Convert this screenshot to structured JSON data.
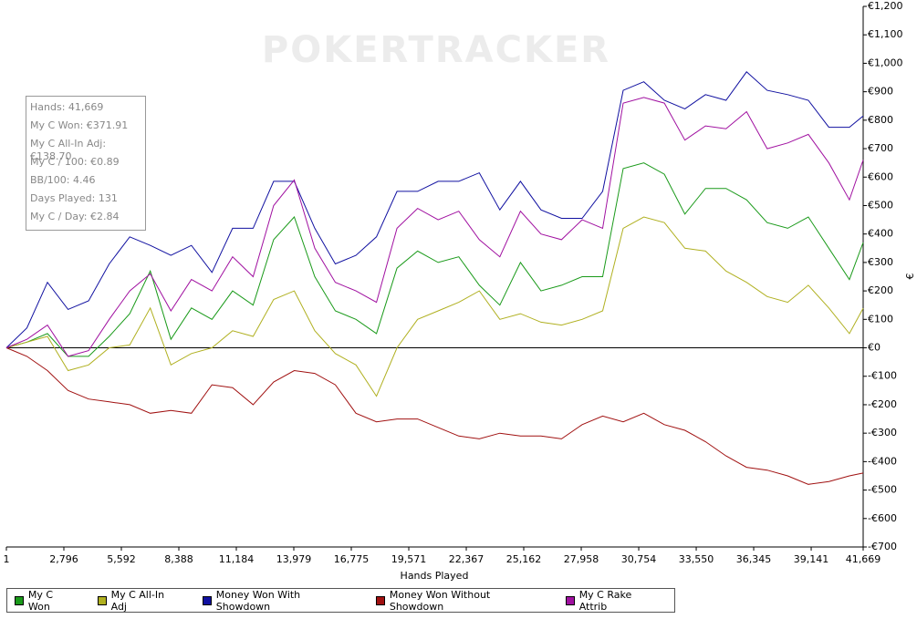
{
  "chart_data": {
    "type": "line",
    "watermark": "POKERTRACKER",
    "x_label": "Hands Played",
    "y_label": "€",
    "annotations": [
      "Hands: 41,669",
      "My C Won: €371.91",
      "My C All-In Adj: €138.70",
      "My C / 100: €0.89",
      "BB/100: 4.46",
      "Days Played: 131",
      "My C / Day: €2.84"
    ],
    "x": [
      1,
      1000,
      2000,
      3000,
      4000,
      5000,
      6000,
      7000,
      8000,
      9000,
      10000,
      11000,
      12000,
      13000,
      14000,
      15000,
      16000,
      17000,
      18000,
      19000,
      20000,
      21000,
      22000,
      23000,
      24000,
      25000,
      26000,
      27000,
      28000,
      29000,
      30000,
      31000,
      32000,
      33000,
      34000,
      35000,
      36000,
      37000,
      38000,
      39000,
      40000,
      41000,
      41669
    ],
    "series": [
      {
        "name": "My C Won",
        "color": "#1a9a1a",
        "values": [
          0,
          20,
          50,
          -30,
          -30,
          40,
          120,
          270,
          30,
          140,
          100,
          200,
          150,
          380,
          460,
          250,
          130,
          100,
          50,
          280,
          340,
          300,
          320,
          220,
          150,
          300,
          200,
          220,
          250,
          250,
          630,
          650,
          610,
          470,
          560,
          560,
          520,
          440,
          420,
          460,
          350,
          240,
          370
        ]
      },
      {
        "name": "My C All-In Adj",
        "color": "#b0b020",
        "values": [
          0,
          20,
          40,
          -80,
          -60,
          0,
          10,
          140,
          -60,
          -20,
          0,
          60,
          40,
          170,
          200,
          60,
          -20,
          -60,
          -170,
          0,
          100,
          130,
          160,
          200,
          100,
          120,
          90,
          80,
          100,
          130,
          420,
          460,
          440,
          350,
          340,
          270,
          230,
          180,
          160,
          220,
          140,
          50,
          139
        ]
      },
      {
        "name": "Money Won With Showdown",
        "color": "#1010a0",
        "values": [
          0,
          70,
          230,
          135,
          165,
          295,
          390,
          360,
          325,
          360,
          265,
          420,
          420,
          585,
          585,
          420,
          295,
          325,
          390,
          550,
          550,
          585,
          585,
          615,
          485,
          585,
          485,
          455,
          455,
          550,
          905,
          935,
          870,
          840,
          890,
          870,
          970,
          905,
          890,
          870,
          775,
          775,
          815
        ]
      },
      {
        "name": "Money Won Without Showdown",
        "color": "#a01010",
        "values": [
          0,
          -30,
          -80,
          -150,
          -180,
          -190,
          -200,
          -230,
          -220,
          -230,
          -130,
          -140,
          -200,
          -120,
          -80,
          -90,
          -130,
          -230,
          -260,
          -250,
          -250,
          -280,
          -310,
          -320,
          -300,
          -310,
          -310,
          -320,
          -270,
          -240,
          -260,
          -230,
          -270,
          -290,
          -330,
          -380,
          -420,
          -430,
          -450,
          -480,
          -470,
          -450,
          -440
        ]
      },
      {
        "name": "My C Rake Attrib",
        "color": "#a010a0",
        "values": [
          0,
          30,
          80,
          -30,
          -10,
          100,
          200,
          260,
          130,
          240,
          200,
          320,
          250,
          500,
          590,
          350,
          230,
          200,
          160,
          420,
          490,
          450,
          480,
          380,
          320,
          480,
          400,
          380,
          450,
          420,
          860,
          880,
          860,
          730,
          780,
          770,
          830,
          700,
          720,
          750,
          650,
          520,
          660
        ]
      }
    ],
    "xlim": [
      1,
      41669
    ],
    "xticks": [
      1,
      {
        "value": 2796,
        "label": "2,796"
      },
      {
        "value": 5592,
        "label": "5,592"
      },
      {
        "value": 8388,
        "label": "8,388"
      },
      {
        "value": 11184,
        "label": "11,184"
      },
      {
        "value": 13979,
        "label": "13,979"
      },
      {
        "value": 16775,
        "label": "16,775"
      },
      {
        "value": 19571,
        "label": "19,571"
      },
      {
        "value": 22367,
        "label": "22,367"
      },
      {
        "value": 25162,
        "label": "25,162"
      },
      {
        "value": 27958,
        "label": "27,958"
      },
      {
        "value": 30754,
        "label": "30,754"
      },
      {
        "value": 33550,
        "label": "33,550"
      },
      {
        "value": 36345,
        "label": "36,345"
      },
      {
        "value": 39141,
        "label": "39,141"
      },
      {
        "value": 41669,
        "label": "41,669"
      }
    ],
    "ylim": [
      -700,
      1200
    ],
    "yticks": [
      {
        "value": -700,
        "label": "-€700"
      },
      {
        "value": -600,
        "label": "-€600"
      },
      {
        "value": -500,
        "label": "-€500"
      },
      {
        "value": -400,
        "label": "-€400"
      },
      {
        "value": -300,
        "label": "-€300"
      },
      {
        "value": -200,
        "label": "-€200"
      },
      {
        "value": -100,
        "label": "-€100"
      },
      {
        "value": 0,
        "label": "€0"
      },
      {
        "value": 100,
        "label": "€100"
      },
      {
        "value": 200,
        "label": "€200"
      },
      {
        "value": 300,
        "label": "€300"
      },
      {
        "value": 400,
        "label": "€400"
      },
      {
        "value": 500,
        "label": "€500"
      },
      {
        "value": 600,
        "label": "€600"
      },
      {
        "value": 700,
        "label": "€700"
      },
      {
        "value": 800,
        "label": "€800"
      },
      {
        "value": 900,
        "label": "€900"
      },
      {
        "value": 1000,
        "label": "€1,000"
      },
      {
        "value": 1100,
        "label": "€1,100"
      },
      {
        "value": 1200,
        "label": "€1,200"
      }
    ],
    "grid": false
  }
}
